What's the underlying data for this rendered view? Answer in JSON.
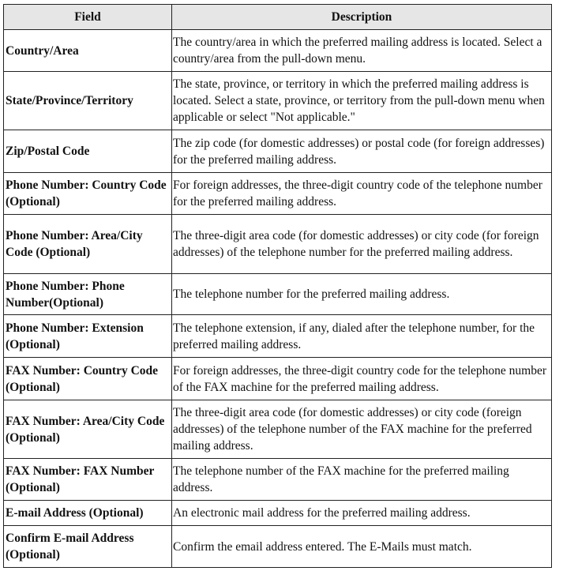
{
  "table": {
    "headers": [
      "Field",
      "Description"
    ],
    "rows": [
      {
        "field": "Country/Area",
        "description": "The country/area in which the preferred mailing address is located. Select a country/area from the pull-down menu."
      },
      {
        "field": "State/Province/Territory",
        "description": "The state, province, or territory in which the preferred mailing address is located. Select a state, province, or territory from the pull-down menu when applicable or select \"Not applicable.\""
      },
      {
        "field": "Zip/Postal Code",
        "description": "The zip code (for domestic addresses) or postal code (for foreign addresses) for the preferred mailing address."
      },
      {
        "field": "Phone Number: Country Code (Optional)",
        "description": "For foreign addresses, the three-digit country code of the telephone number for the preferred mailing address."
      },
      {
        "field": "Phone Number: Area/City Code (Optional)",
        "description": "The three-digit area code (for domestic addresses) or city code (for foreign addresses) of the telephone number for the preferred mailing address."
      },
      {
        "field": "Phone Number: Phone Number(Optional)",
        "description": "The telephone number for the preferred mailing address."
      },
      {
        "field": "Phone Number: Extension (Optional)",
        "description": "The telephone extension, if any, dialed after the telephone number, for the preferred mailing address."
      },
      {
        "field": "FAX Number: Country Code (Optional)",
        "description": "For foreign addresses, the three-digit country code for the telephone number of the FAX machine for the preferred mailing address."
      },
      {
        "field": "FAX Number: Area/City Code (Optional)",
        "description": "The three-digit area code (for domestic addresses) or city code (foreign addresses) of the telephone number of the FAX machine for the preferred mailing address."
      },
      {
        "field": "FAX Number: FAX Number (Optional)",
        "description": "The telephone number of the FAX machine for the preferred mailing address."
      },
      {
        "field": "E-mail Address (Optional)",
        "description": "An electronic mail address for the preferred mailing address."
      },
      {
        "field": "Confirm E-mail Address (Optional)",
        "description": "Confirm the email address entered. The E-Mails must match."
      }
    ]
  }
}
